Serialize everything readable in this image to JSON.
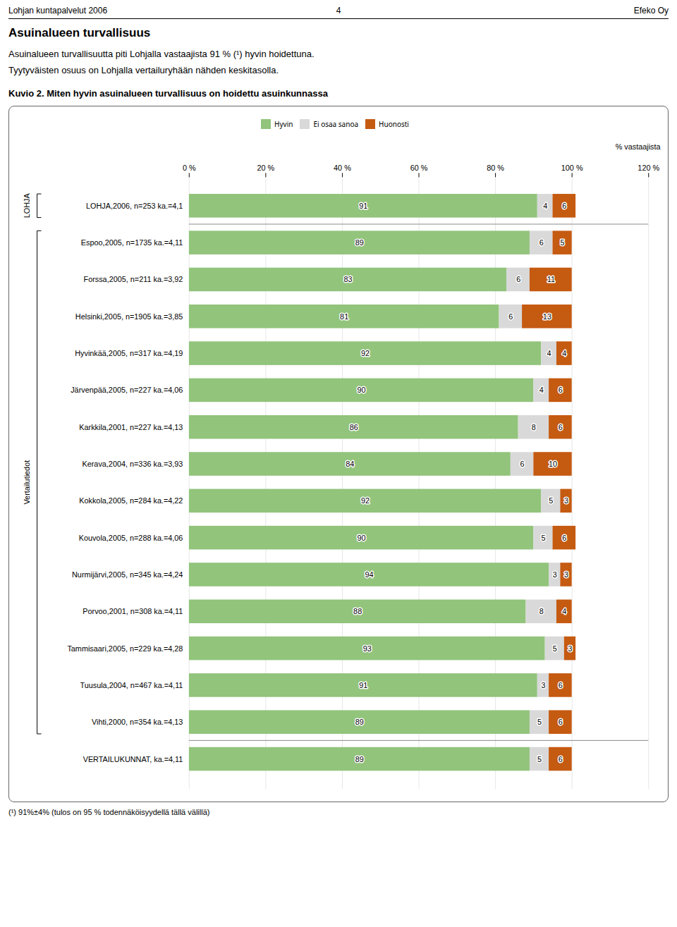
{
  "chart_data": {
    "type": "bar",
    "orientation": "horizontal",
    "stacked": true,
    "data_labels": true,
    "grid": true,
    "legend": "top",
    "title": "Kuvio 2. Miten hyvin asuinalueen turvallisuus on hoidettu asuinkunnassa",
    "xlabel": "% vastaajista",
    "annotations": [
      "Lohjan kuntapalvelut 2006",
      "4",
      "Efeko Oy",
      "Asuinalueen turvallisuus",
      "Asuinalueen turvallisuutta piti Lohjalla vastaajista 91 % (¹) hyvin hoidettuna.",
      "Tyytyväisten osuus on Lohjalla vertailuryhään nähden keskitasolla.",
      "LOHJA",
      "Vertailutiedot",
      "(¹) 91%±4% (tulos on 95 % todennäköisyydellä tällä välillä)"
    ],
    "categories": [
      "LOHJA,2006, n=253 ka.=4,1",
      "Espoo,2005, n=1735 ka.=4,11",
      "Forssa,2005, n=211 ka.=3,92",
      "Helsinki,2005, n=1905 ka.=3,85",
      "Hyvinkää,2005, n=317 ka.=4,19",
      "Järvenpää,2005, n=227 ka.=4,06",
      "Karkkila,2001, n=227 ka.=4,13",
      "Kerava,2004, n=336 ka.=3,93",
      "Kokkola,2005, n=284 ka.=4,22",
      "Kouvola,2005, n=288 ka.=4,06",
      "Nurmijärvi,2005, n=345 ka.=4,24",
      "Porvoo,2001, n=308 ka.=4,11",
      "Tammisaari,2005, n=229 ka.=4,28",
      "Tuusula,2004, n=467 ka.=4,11",
      "Vihti,2000, n=354 ka.=4,13",
      "VERTAILUKUNNAT, ka.=4,11"
    ],
    "series": [
      {
        "name": "Hyvin",
        "color": "#92c47c",
        "values": [
          91,
          89,
          83,
          81,
          92,
          90,
          86,
          84,
          92,
          90,
          94,
          88,
          93,
          91,
          89,
          89
        ]
      },
      {
        "name": "Ei osaa sanoa",
        "color": "#d9d9d9",
        "values": [
          4,
          6,
          6,
          6,
          4,
          4,
          8,
          6,
          5,
          5,
          3,
          8,
          5,
          3,
          5,
          5
        ]
      },
      {
        "name": "Huonosti",
        "color": "#c55a11",
        "values": [
          6,
          5,
          11,
          13,
          4,
          6,
          6,
          10,
          3,
          6,
          3,
          4,
          3,
          6,
          6,
          6
        ]
      }
    ],
    "xlim": [
      0,
      120
    ],
    "xticks": [
      {
        "value": 0,
        "label": "0 %"
      },
      {
        "value": 20,
        "label": "20 %"
      },
      {
        "value": 40,
        "label": "40 %"
      },
      {
        "value": 60,
        "label": "60 %"
      },
      {
        "value": 80,
        "label": "80 %"
      },
      {
        "value": 100,
        "label": "100 %"
      },
      {
        "value": 120,
        "label": "120 %"
      }
    ]
  }
}
